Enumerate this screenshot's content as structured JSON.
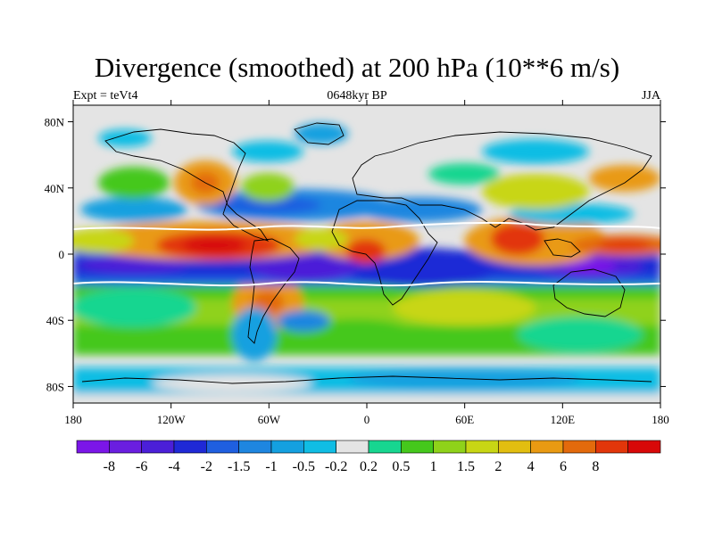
{
  "title": "Divergence (smoothed) at 200 hPa (10**6 m/s)",
  "subtitle_left": "Expt = teVt4",
  "subtitle_center": "0648kyr BP",
  "subtitle_right": "JJA",
  "lat_ticks": [
    {
      "value": 80,
      "label": "80N"
    },
    {
      "value": 40,
      "label": "40N"
    },
    {
      "value": 0,
      "label": "0"
    },
    {
      "value": -40,
      "label": "40S"
    },
    {
      "value": -80,
      "label": "80S"
    }
  ],
  "lon_ticks": [
    {
      "value": -180,
      "label": "180"
    },
    {
      "value": -120,
      "label": "120W"
    },
    {
      "value": -60,
      "label": "60W"
    },
    {
      "value": 0,
      "label": "0"
    },
    {
      "value": 60,
      "label": "60E"
    },
    {
      "value": 120,
      "label": "120E"
    },
    {
      "value": 180,
      "label": "180"
    }
  ],
  "colorbar": {
    "colors": [
      "#7b16e8",
      "#6a1ee0",
      "#4b1fd8",
      "#1f29d6",
      "#1f5fe0",
      "#1e86e0",
      "#14a0e0",
      "#10bde4",
      "#e4e4e4",
      "#17d690",
      "#45c81c",
      "#8fd21a",
      "#c8d614",
      "#e2be10",
      "#e99a12",
      "#e36a0c",
      "#e2360a",
      "#d80808"
    ],
    "labels": [
      "-8",
      "-6",
      "-4",
      "-2",
      "-1.5",
      "-1",
      "-0.5",
      "-0.2",
      "0.2",
      "0.5",
      "1",
      "1.5",
      "2",
      "4",
      "6",
      "8"
    ]
  },
  "map": {
    "lon_range": [
      -180,
      180
    ],
    "lat_range": [
      -90,
      90
    ]
  }
}
